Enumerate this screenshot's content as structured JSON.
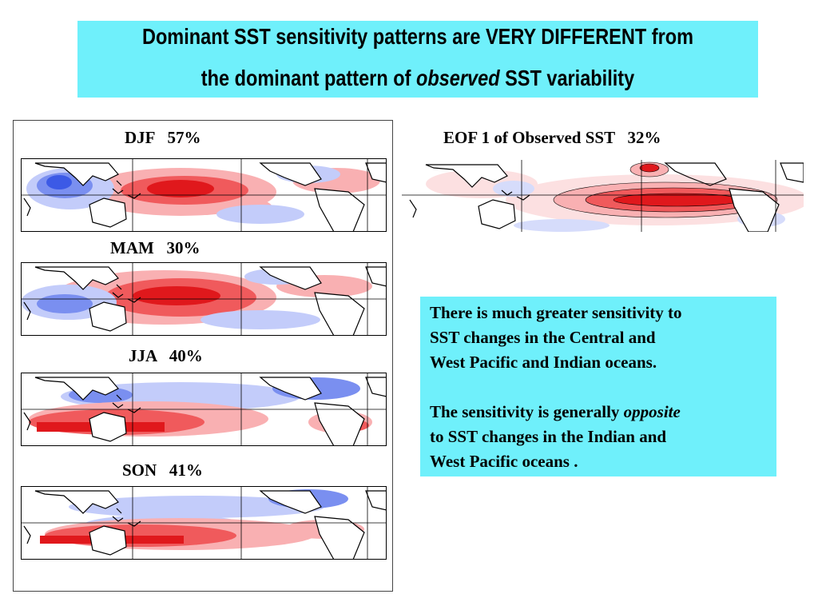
{
  "title": {
    "line1": "Dominant SST sensitivity patterns are VERY DIFFERENT  from",
    "line2_pre": "the dominant pattern of ",
    "line2_em": "observed",
    "line2_post": " SST variability"
  },
  "season_panels": [
    {
      "label": "DJF   57%"
    },
    {
      "label": "MAM   30%"
    },
    {
      "label": "JJA   40%"
    },
    {
      "label": "SON   41%"
    }
  ],
  "eof_panel": {
    "label": "EOF 1 of Observed SST   32%"
  },
  "explanation": {
    "p1_line1": "There is much greater sensitivity to",
    "p1_line2": "SST changes in the Central and",
    "p1_line3": "West Pacific and Indian oceans.",
    "p2_line1_pre": "The sensitivity is generally ",
    "p2_line1_em": "opposite",
    "p2_line2": "to SST changes in the Indian and",
    "p2_line3": "West  Pacific oceans ."
  },
  "colors": {
    "title_bg": "#6ff0fb",
    "positive_strong": "#e0181c",
    "positive_medium": "#f05a5c",
    "positive_light": "#f9b0b2",
    "negative_strong": "#3c5ae6",
    "negative_medium": "#7a8ff0",
    "negative_light": "#c3ccfa"
  }
}
